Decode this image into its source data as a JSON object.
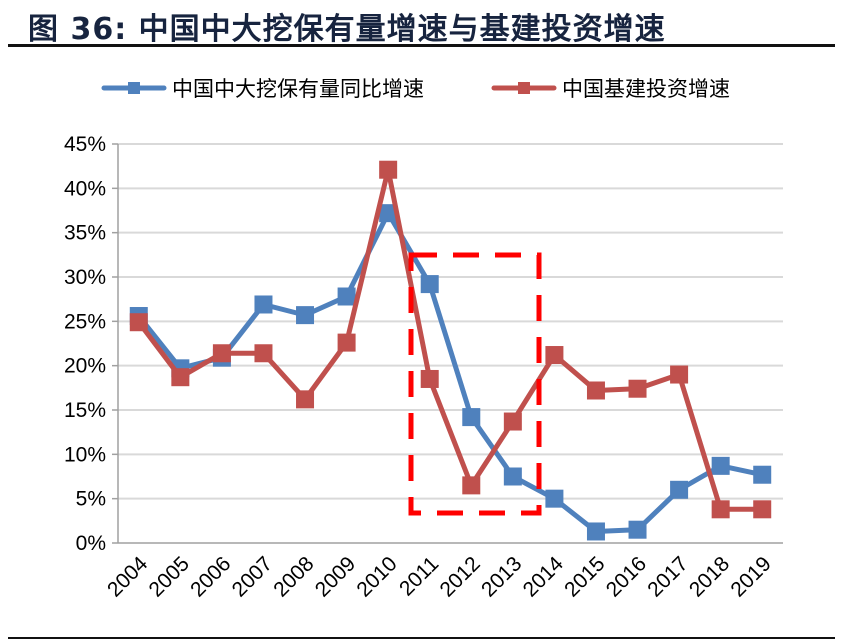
{
  "title": "图 36:  中国中大挖保有量增速与基建投资增速",
  "colors": {
    "series_blue": "#4F81BD",
    "series_red": "#C0504D",
    "highlight_box": "#FF0000",
    "grid": "#D9D9D9",
    "axis": "#A0A0A0"
  },
  "chart_data": {
    "type": "line",
    "title": "中国中大挖保有量增速与基建投资增速",
    "xlabel": "",
    "ylabel": "",
    "categories": [
      "2004",
      "2005",
      "2006",
      "2007",
      "2008",
      "2009",
      "2010",
      "2011",
      "2012",
      "2013",
      "2014",
      "2015",
      "2016",
      "2017",
      "2018",
      "2019"
    ],
    "series": [
      {
        "name": "中国中大挖保有量同比增速",
        "color": "#4F81BD",
        "marker": "square",
        "values": [
          25.6,
          19.7,
          20.9,
          26.9,
          25.7,
          27.8,
          37.2,
          29.2,
          14.2,
          7.5,
          5.0,
          1.3,
          1.5,
          6.0,
          8.7,
          7.7
        ]
      },
      {
        "name": "中国基建投资增速",
        "color": "#C0504D",
        "marker": "square",
        "values": [
          24.9,
          18.7,
          21.4,
          21.4,
          16.2,
          22.6,
          42.1,
          18.5,
          6.5,
          13.7,
          21.2,
          17.2,
          17.4,
          19.0,
          3.8,
          3.8
        ]
      }
    ],
    "yticks": [
      "0%",
      "5%",
      "10%",
      "15%",
      "20%",
      "25%",
      "30%",
      "35%",
      "40%",
      "45%"
    ],
    "ylim": [
      0,
      45
    ],
    "grid": true,
    "legend_position": "top",
    "annotations": [
      {
        "type": "dashed-rectangle",
        "color": "#FF0000",
        "x_range": [
          "2011 (left edge)",
          "2013-2014 boundary"
        ],
        "y_range_pct": [
          3.4,
          32.5
        ]
      }
    ]
  }
}
